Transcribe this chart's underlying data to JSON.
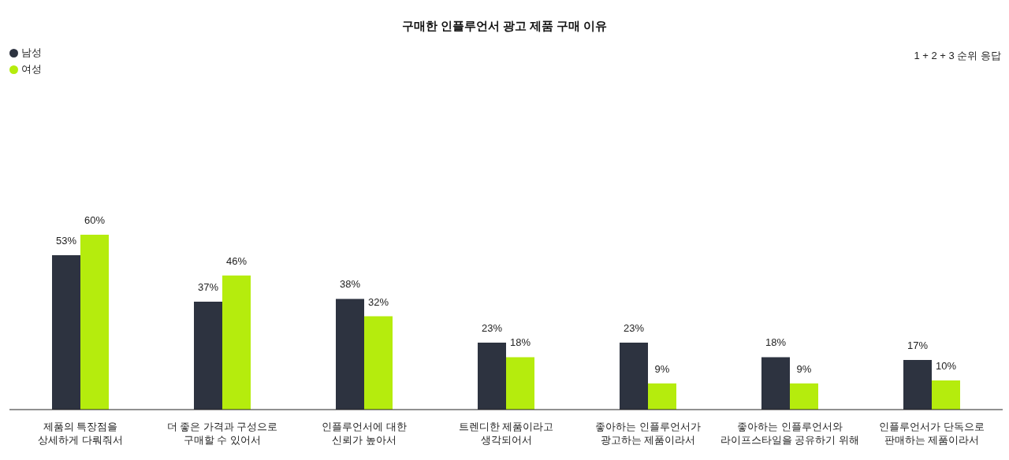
{
  "chart_data": {
    "type": "bar",
    "title": "구매한 인플루언서 광고 제품 구매 이유",
    "categories": [
      "제품의 특장점을\n상세하게 다뤄줘서",
      "더 좋은 가격과 구성으로\n구매할 수 있어서",
      "인플루언서에 대한\n신뢰가 높아서",
      "트렌디한 제품이라고\n생각되어서",
      "좋아하는 인플루언서가\n광고하는 제품이라서",
      "좋아하는 인플루언서와\n라이프스타일을 공유하기 위해",
      "인플루언서가 단독으로\n판매하는 제품이라서"
    ],
    "series": [
      {
        "name": "남성",
        "color": "#2d3340",
        "values": [
          53,
          37,
          38,
          23,
          23,
          18,
          17
        ],
        "value_labels": [
          "53%",
          "37%",
          "38%",
          "23%",
          "23%",
          "18%",
          "17%"
        ]
      },
      {
        "name": "여성",
        "color": "#b5ec0d",
        "values": [
          60,
          46,
          32,
          18,
          9,
          9,
          10
        ],
        "value_labels": [
          "60%",
          "46%",
          "32%",
          "18%",
          "9%",
          "9%",
          "10%"
        ]
      }
    ],
    "legend": "top left",
    "annotations": [
      "1 + 2 + 3 순위 응답"
    ]
  }
}
